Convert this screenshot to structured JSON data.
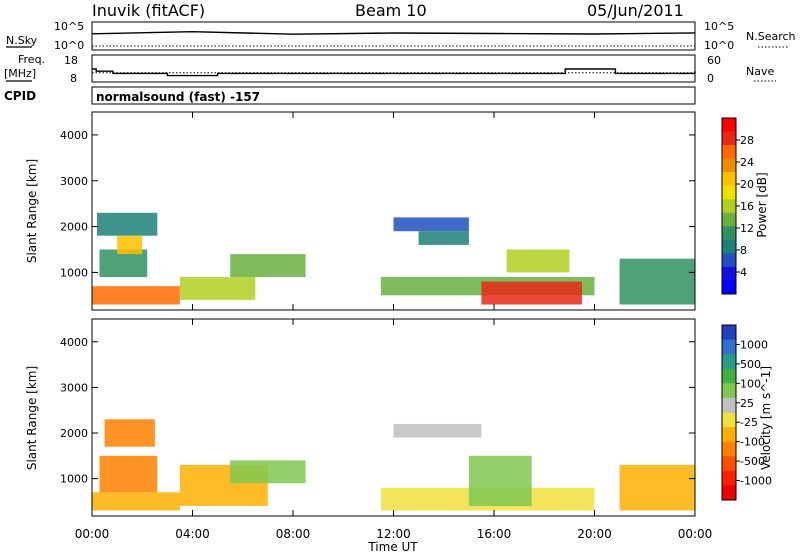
{
  "header": {
    "title_left": "Inuvik (fitACF)",
    "title_center": "Beam 10",
    "title_right": "05/Jun/2011"
  },
  "panel_labels": {
    "nsky_label": "N.Sky",
    "nsky_ticks": [
      "10^5",
      "10^0"
    ],
    "nsearch_label": "N.Search",
    "nsearch_ticks": [
      "10^5",
      "10^0"
    ],
    "freq_label": "Freq.",
    "freq_unit": "[MHz]",
    "freq_ticks": [
      "18",
      "8"
    ],
    "nave_label": "Nave",
    "nave_ticks": [
      "60",
      "0"
    ],
    "cpid_label": "CPID",
    "cpid_value": "normalsound (fast) -157"
  },
  "axes": {
    "ylabel": "Slant Range [km]",
    "yticks": [
      "4000",
      "3000",
      "2000",
      "1000"
    ],
    "xlabel": "Time UT",
    "xticks": [
      "00:00",
      "04:00",
      "08:00",
      "12:00",
      "16:00",
      "20:00",
      "00:00"
    ]
  },
  "power_scale": {
    "label": "Power [dB]",
    "ticks": [
      "28",
      "24",
      "20",
      "16",
      "12",
      "8",
      "4"
    ],
    "colors": [
      "#ff0000",
      "#e82818",
      "#ff6a00",
      "#f08c00",
      "#ffc000",
      "#f0e000",
      "#b0d020",
      "#68b040",
      "#309060",
      "#1c8078",
      "#2050c0",
      "#1010e0",
      "#0000ff"
    ]
  },
  "velocity_scale": {
    "label": "Velocity [m s^-1]",
    "ticks": [
      "1000",
      "500",
      "100",
      "25",
      "-25",
      "-100",
      "-500",
      "-1000"
    ],
    "colors": [
      "#2040c0",
      "#3070c8",
      "#2a9a8a",
      "#40b040",
      "#80c850",
      "#c0c0c0",
      "#f0e040",
      "#ffb000",
      "#ff8000",
      "#ff5000",
      "#ff2000",
      "#ee0000"
    ]
  },
  "chart_data": [
    {
      "type": "heatmap",
      "title": "Power",
      "xlabel": "Time UT",
      "ylabel": "Slant Range [km]",
      "xlim": [
        "00:00",
        "24:00"
      ],
      "ylim": [
        180,
        4500
      ],
      "colorbar": "Power [dB]",
      "color_range": [
        0,
        30
      ],
      "regions": [
        {
          "t_start": 0.0,
          "t_end": 3.5,
          "range_start": 300,
          "range_end": 700,
          "value": 24
        },
        {
          "t_start": 0.3,
          "t_end": 2.2,
          "range_start": 900,
          "range_end": 1500,
          "value": 10
        },
        {
          "t_start": 0.2,
          "t_end": 2.6,
          "range_start": 1800,
          "range_end": 2300,
          "value": 8
        },
        {
          "t_start": 1.0,
          "t_end": 2.0,
          "range_start": 1400,
          "range_end": 1800,
          "value": 20
        },
        {
          "t_start": 3.5,
          "t_end": 6.5,
          "range_start": 400,
          "range_end": 900,
          "value": 14
        },
        {
          "t_start": 5.5,
          "t_end": 8.5,
          "range_start": 900,
          "range_end": 1400,
          "value": 12
        },
        {
          "t_start": 12.0,
          "t_end": 15.0,
          "range_start": 1900,
          "range_end": 2200,
          "value": 6
        },
        {
          "t_start": 13.0,
          "t_end": 15.0,
          "range_start": 1600,
          "range_end": 1900,
          "value": 8
        },
        {
          "t_start": 11.5,
          "t_end": 20.0,
          "range_start": 500,
          "range_end": 900,
          "value": 12
        },
        {
          "t_start": 15.5,
          "t_end": 19.5,
          "range_start": 300,
          "range_end": 800,
          "value": 26
        },
        {
          "t_start": 16.5,
          "t_end": 19.0,
          "range_start": 1000,
          "range_end": 1500,
          "value": 16
        },
        {
          "t_start": 21.0,
          "t_end": 24.0,
          "range_start": 300,
          "range_end": 1300,
          "value": 10
        }
      ]
    },
    {
      "type": "heatmap",
      "title": "Velocity",
      "xlabel": "Time UT",
      "ylabel": "Slant Range [km]",
      "xlim": [
        "00:00",
        "24:00"
      ],
      "ylim": [
        180,
        4500
      ],
      "colorbar": "Velocity [m s^-1]",
      "color_range": [
        -1000,
        1000
      ],
      "regions": [
        {
          "t_start": 0.0,
          "t_end": 3.5,
          "range_start": 300,
          "range_end": 700,
          "value": -200
        },
        {
          "t_start": 0.3,
          "t_end": 2.6,
          "range_start": 700,
          "range_end": 1500,
          "value": -400
        },
        {
          "t_start": 0.5,
          "t_end": 2.5,
          "range_start": 1700,
          "range_end": 2300,
          "value": -500
        },
        {
          "t_start": 3.5,
          "t_end": 7.0,
          "range_start": 400,
          "range_end": 1300,
          "value": -300
        },
        {
          "t_start": 5.5,
          "t_end": 8.5,
          "range_start": 900,
          "range_end": 1400,
          "value": 200
        },
        {
          "t_start": 12.0,
          "t_end": 15.5,
          "range_start": 1900,
          "range_end": 2200,
          "value": 0
        },
        {
          "t_start": 11.5,
          "t_end": 20.0,
          "range_start": 300,
          "range_end": 800,
          "value": -150
        },
        {
          "t_start": 15.0,
          "t_end": 17.5,
          "range_start": 400,
          "range_end": 1500,
          "value": 300
        },
        {
          "t_start": 21.0,
          "t_end": 24.0,
          "range_start": 300,
          "range_end": 1300,
          "value": -300
        }
      ]
    },
    {
      "type": "line",
      "title": "N.Sky",
      "x": [
        "00:00",
        "04:00",
        "08:00",
        "12:00",
        "16:00",
        "20:00",
        "24:00"
      ],
      "series": [
        {
          "name": "N.Sky",
          "values": [
            1000,
            3000,
            800,
            1500,
            1200,
            900,
            1600
          ]
        }
      ],
      "ylim": [
        1,
        100000
      ],
      "yscale": "log"
    },
    {
      "type": "line",
      "title": "Freq.",
      "x": [
        "00:00",
        "00:10",
        "00:50",
        "03:00",
        "05:00",
        "18:10",
        "18:50",
        "20:50",
        "23:20",
        "24:00"
      ],
      "series": [
        {
          "name": "Freq.",
          "values": [
            13,
            12,
            11,
            10,
            11,
            11,
            13,
            11,
            11,
            12
          ]
        },
        {
          "name": "Nave",
          "values": [
            20,
            20,
            20,
            20,
            20,
            20,
            20,
            20,
            20,
            20
          ]
        }
      ],
      "ylim": [
        8,
        18
      ]
    }
  ]
}
